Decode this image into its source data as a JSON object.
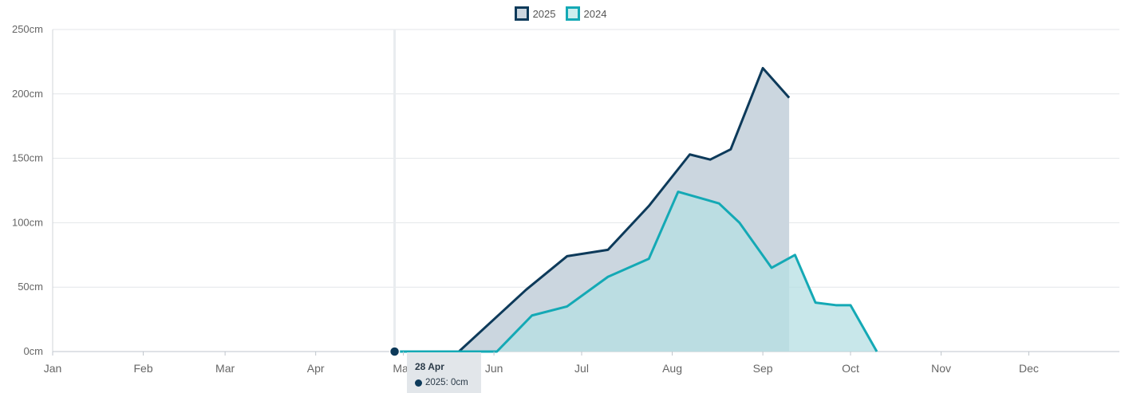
{
  "legend": {
    "items": [
      {
        "label": "2025",
        "color": "#0d3a5a",
        "fill": "#cbd6df"
      },
      {
        "label": "2024",
        "color": "#14a9b5",
        "fill": "#cdeeee"
      }
    ]
  },
  "tooltip": {
    "date": "28 Apr",
    "series_text": "2025: 0cm"
  },
  "chart_data": {
    "type": "area",
    "x_unit": "date",
    "ylim": [
      0,
      250
    ],
    "y_ticks": [
      "0cm",
      "50cm",
      "100cm",
      "150cm",
      "200cm",
      "250cm"
    ],
    "x_ticks": [
      "Jan",
      "Feb",
      "Mar",
      "Apr",
      "May",
      "Jun",
      "Jul",
      "Aug",
      "Sep",
      "Oct",
      "Nov",
      "Dec"
    ],
    "grid": true,
    "legend_position": "top-center",
    "crosshair_date": "04-28",
    "series": [
      {
        "name": "2025",
        "color": "#0d3a5a",
        "fill": "#cbd6df",
        "points": [
          [
            "04-28",
            0
          ],
          [
            "05-20",
            0
          ],
          [
            "06-12",
            48
          ],
          [
            "06-26",
            74
          ],
          [
            "07-10",
            79
          ],
          [
            "07-24",
            113
          ],
          [
            "08-07",
            153
          ],
          [
            "08-14",
            149
          ],
          [
            "08-21",
            157
          ],
          [
            "09-01",
            220
          ],
          [
            "09-10",
            197
          ]
        ]
      },
      {
        "name": "2024",
        "color": "#14a9b5",
        "fill": "#b6dfe3",
        "points": [
          [
            "04-28",
            0
          ],
          [
            "06-02",
            0
          ],
          [
            "06-14",
            28
          ],
          [
            "06-26",
            35
          ],
          [
            "07-10",
            58
          ],
          [
            "07-24",
            72
          ],
          [
            "08-03",
            124
          ],
          [
            "08-17",
            115
          ],
          [
            "08-24",
            100
          ],
          [
            "09-04",
            65
          ],
          [
            "09-12",
            75
          ],
          [
            "09-19",
            38
          ],
          [
            "09-26",
            36
          ],
          [
            "10-01",
            36
          ],
          [
            "10-10",
            0
          ]
        ]
      }
    ]
  }
}
